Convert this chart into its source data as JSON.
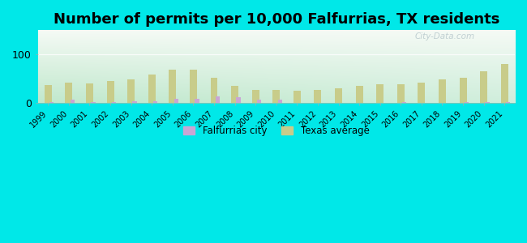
{
  "title": "Number of permits per 10,000 Falfurrias, TX residents",
  "years": [
    1999,
    2000,
    2001,
    2002,
    2003,
    2004,
    2005,
    2006,
    2007,
    2008,
    2009,
    2010,
    2011,
    2012,
    2013,
    2014,
    2015,
    2016,
    2017,
    2018,
    2019,
    2020,
    2021
  ],
  "city_values": [
    1,
    7,
    2,
    2,
    3,
    3,
    8,
    8,
    14,
    12,
    7,
    6,
    0,
    0,
    0,
    0,
    0,
    2,
    0,
    0,
    1,
    1,
    2
  ],
  "texas_values": [
    37,
    42,
    40,
    45,
    48,
    58,
    68,
    68,
    52,
    35,
    27,
    26,
    25,
    26,
    30,
    35,
    38,
    38,
    42,
    48,
    52,
    65,
    80
  ],
  "city_color": "#c9a6d4",
  "texas_color": "#c8cc8a",
  "ylim": [
    0,
    150
  ],
  "yticks": [
    0,
    100
  ],
  "outer_bg": "#00e8e8",
  "bar_width": 0.35,
  "title_fontsize": 13,
  "legend_city": "Falfurrias city",
  "legend_texas": "Texas average",
  "bg_top": "#f5faf5",
  "bg_bottom": "#c8eedd",
  "bg_right": "#e8f5f0",
  "gridline_color": "#ccddcc",
  "watermark_color": "#b8c8cc"
}
